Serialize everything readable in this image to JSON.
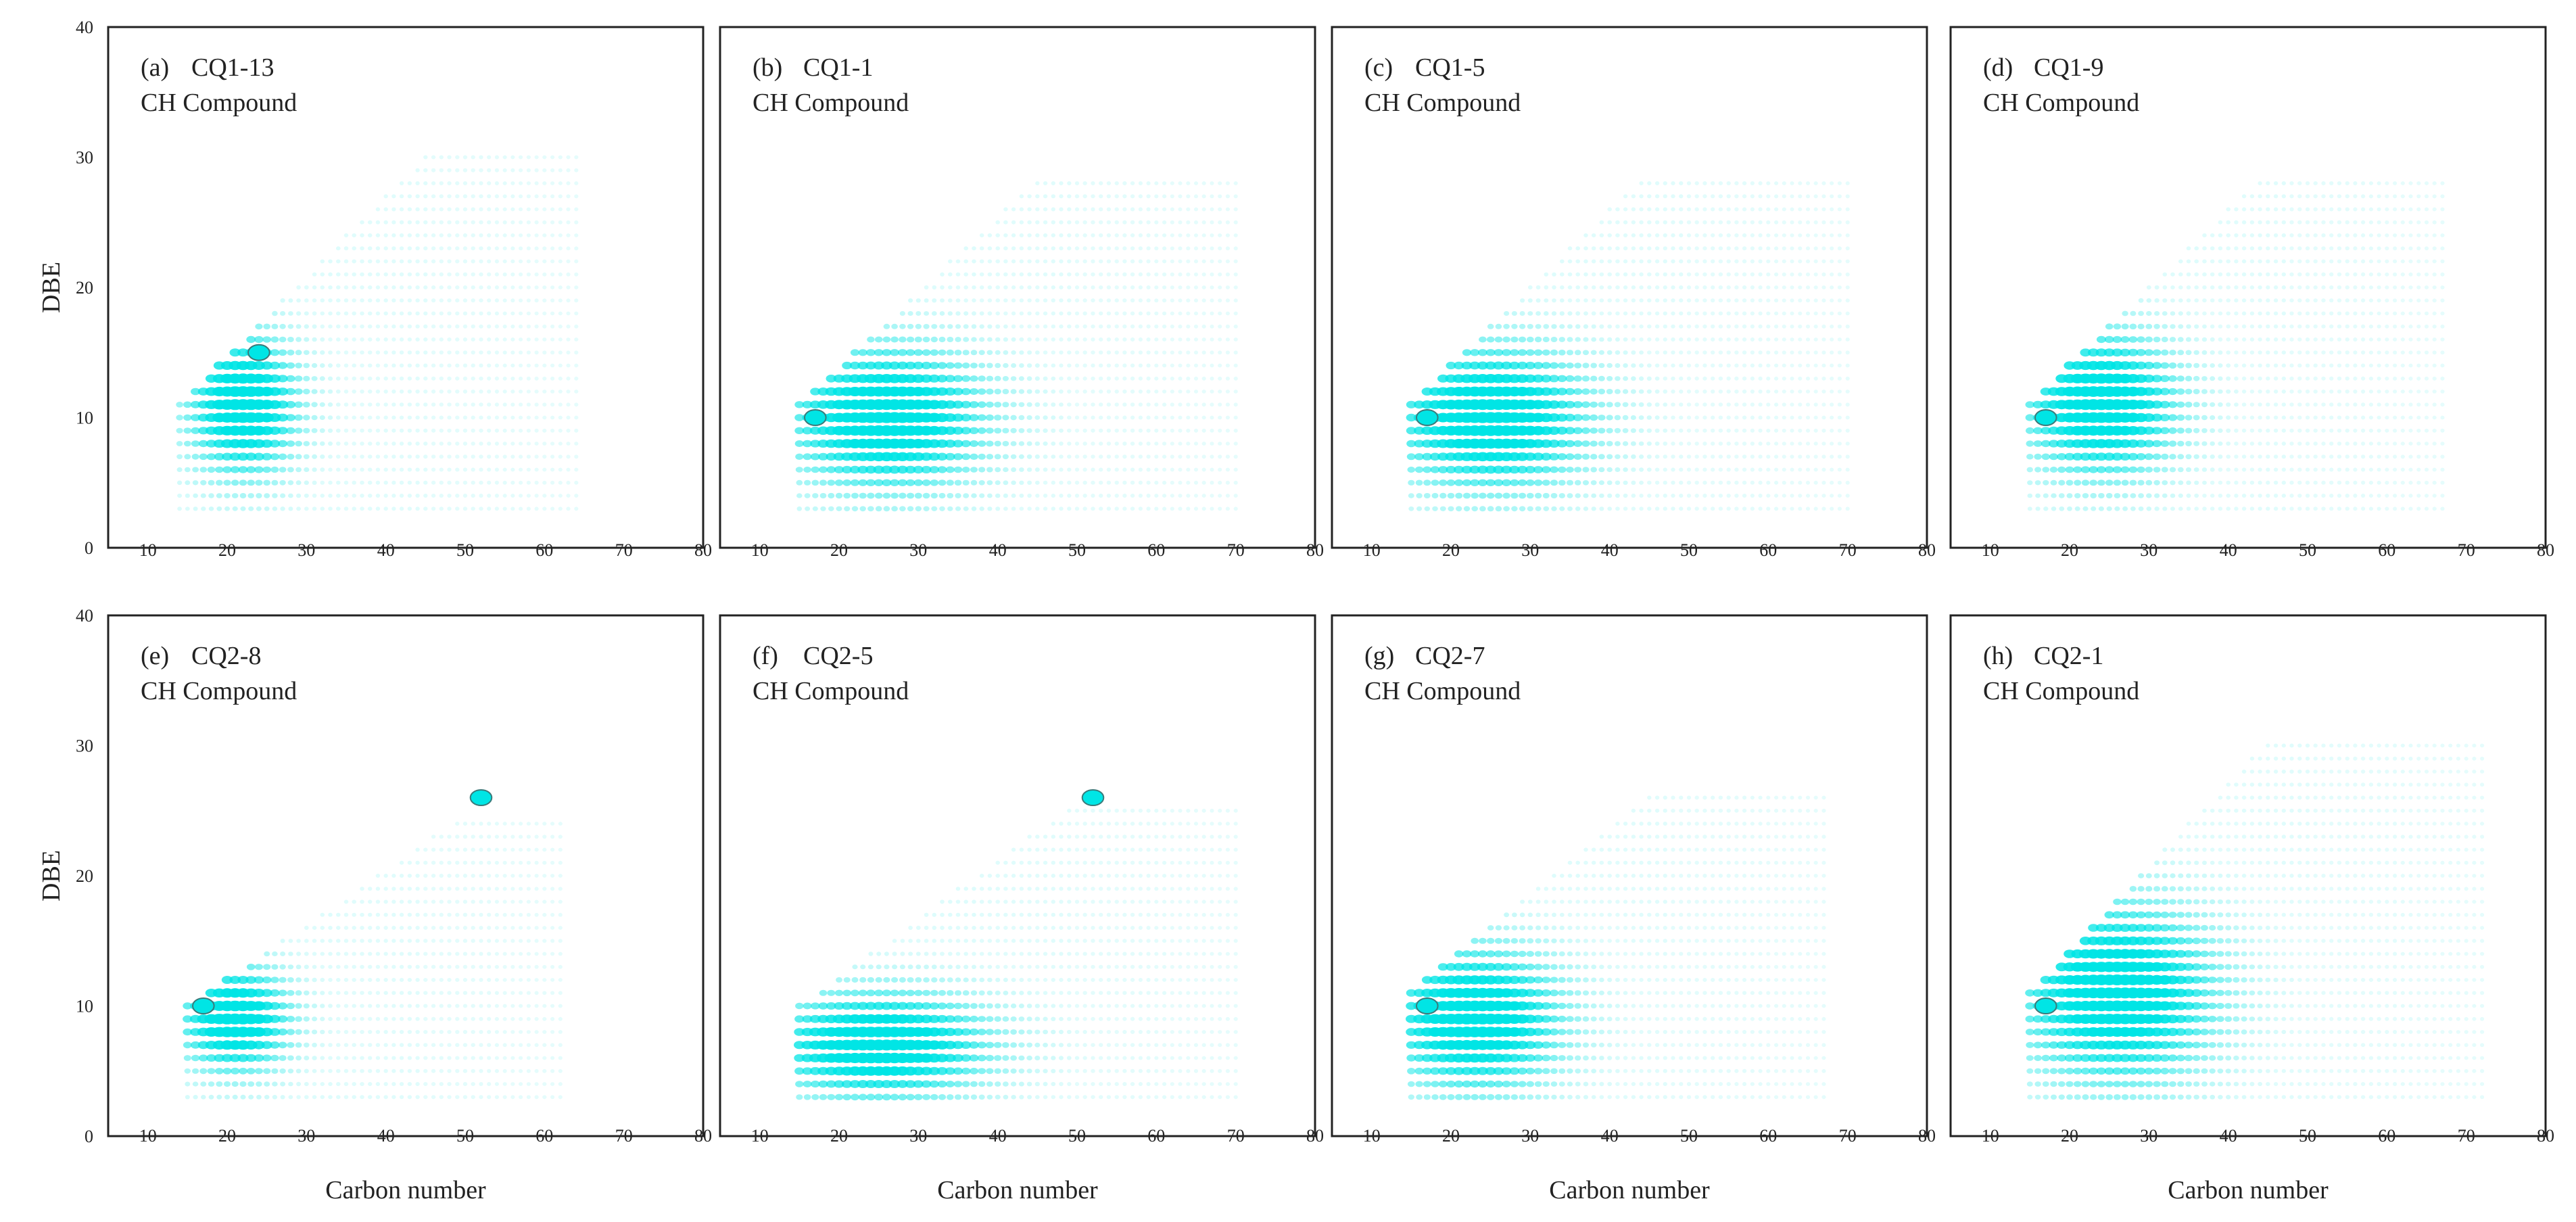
{
  "figure": {
    "type": "bubble-scatter (DBE vs Carbon number)",
    "marker_color": "#00E5E5",
    "marker_edge_color": "#3a7a7a"
  },
  "axes": {
    "xlabel": "Carbon number",
    "ylabel": "DBE",
    "xlim": [
      5,
      80
    ],
    "ylim": [
      0,
      40
    ],
    "x_ticks": [
      "10",
      "20",
      "30",
      "40",
      "50",
      "60",
      "70",
      "80"
    ],
    "y_ticks": [
      "0",
      "10",
      "20",
      "30",
      "40"
    ]
  },
  "chart_data": [
    {
      "type": "scatter",
      "id": "a",
      "tag": "(a)",
      "sample": "CQ1-13",
      "compound": "CH Compound",
      "xlim": [
        5,
        80
      ],
      "ylim": [
        0,
        40
      ],
      "envelope": {
        "cmin": 14,
        "cmax": 64,
        "dbe_min": 3,
        "dbe_max_at_cmin": 11,
        "slope": 0.62,
        "dbe_cap": 30
      },
      "hotspot": {
        "c": 22,
        "dbe": 11,
        "c_spread": 5,
        "dbe_spread": 4
      },
      "highlights": [
        {
          "c": 24,
          "dbe": 15
        }
      ]
    },
    {
      "type": "scatter",
      "id": "b",
      "tag": "(b)",
      "sample": "CQ1-1",
      "compound": "CH Compound",
      "xlim": [
        5,
        80
      ],
      "ylim": [
        0,
        40
      ],
      "envelope": {
        "cmin": 15,
        "cmax": 70,
        "dbe_min": 3,
        "dbe_max_at_cmin": 11,
        "slope": 0.58,
        "dbe_cap": 28
      },
      "hotspot": {
        "c": 26,
        "dbe": 10,
        "c_spread": 9,
        "dbe_spread": 4
      },
      "highlights": [
        {
          "c": 17,
          "dbe": 10
        }
      ]
    },
    {
      "type": "scatter",
      "id": "c",
      "tag": "(c)",
      "sample": "CQ1-5",
      "compound": "CH Compound",
      "xlim": [
        5,
        80
      ],
      "ylim": [
        0,
        40
      ],
      "envelope": {
        "cmin": 15,
        "cmax": 70,
        "dbe_min": 3,
        "dbe_max_at_cmin": 11,
        "slope": 0.6,
        "dbe_cap": 28
      },
      "hotspot": {
        "c": 25,
        "dbe": 10,
        "c_spread": 9,
        "dbe_spread": 4
      },
      "highlights": [
        {
          "c": 17,
          "dbe": 10
        }
      ]
    },
    {
      "type": "scatter",
      "id": "d",
      "tag": "(d)",
      "sample": "CQ1-9",
      "compound": "CH Compound",
      "xlim": [
        5,
        80
      ],
      "ylim": [
        0,
        40
      ],
      "envelope": {
        "cmin": 15,
        "cmax": 67,
        "dbe_min": 3,
        "dbe_max_at_cmin": 11,
        "slope": 0.6,
        "dbe_cap": 28
      },
      "hotspot": {
        "c": 24,
        "dbe": 11,
        "c_spread": 7,
        "dbe_spread": 4
      },
      "highlights": [
        {
          "c": 17,
          "dbe": 10
        }
      ]
    },
    {
      "type": "scatter",
      "id": "e",
      "tag": "(e)",
      "sample": "CQ2-8",
      "compound": "CH Compound",
      "xlim": [
        5,
        80
      ],
      "ylim": [
        0,
        40
      ],
      "envelope": {
        "cmin": 15,
        "cmax": 62,
        "dbe_min": 3,
        "dbe_max_at_cmin": 10,
        "slope": 0.42,
        "dbe_cap": 24
      },
      "hotspot": {
        "c": 21,
        "dbe": 9,
        "c_spread": 5,
        "dbe_spread": 3
      },
      "highlights": [
        {
          "c": 17,
          "dbe": 10
        },
        {
          "c": 52,
          "dbe": 26
        }
      ]
    },
    {
      "type": "scatter",
      "id": "f",
      "tag": "(f)",
      "sample": "CQ2-5",
      "compound": "CH Compound",
      "xlim": [
        5,
        80
      ],
      "ylim": [
        0,
        40
      ],
      "envelope": {
        "cmin": 15,
        "cmax": 70,
        "dbe_min": 3,
        "dbe_max_at_cmin": 10,
        "slope": 0.45,
        "dbe_cap": 25
      },
      "hotspot": {
        "c": 25,
        "dbe": 7,
        "c_spread": 10,
        "dbe_spread": 3
      },
      "highlights": [
        {
          "c": 52,
          "dbe": 26
        }
      ]
    },
    {
      "type": "scatter",
      "id": "g",
      "tag": "(g)",
      "sample": "CQ2-7",
      "compound": "CH Compound",
      "xlim": [
        5,
        80
      ],
      "ylim": [
        0,
        40
      ],
      "envelope": {
        "cmin": 15,
        "cmax": 67,
        "dbe_min": 3,
        "dbe_max_at_cmin": 11,
        "slope": 0.5,
        "dbe_cap": 26
      },
      "hotspot": {
        "c": 23,
        "dbe": 9,
        "c_spread": 8,
        "dbe_spread": 4
      },
      "highlights": [
        {
          "c": 17,
          "dbe": 10
        }
      ]
    },
    {
      "type": "scatter",
      "id": "h",
      "tag": "(h)",
      "sample": "CQ2-1",
      "compound": "CH Compound",
      "xlim": [
        5,
        80
      ],
      "ylim": [
        0,
        40
      ],
      "envelope": {
        "cmin": 15,
        "cmax": 72,
        "dbe_min": 3,
        "dbe_max_at_cmin": 11,
        "slope": 0.65,
        "dbe_cap": 30
      },
      "hotspot": {
        "c": 26,
        "dbe": 11,
        "c_spread": 9,
        "dbe_spread": 5
      },
      "highlights": [
        {
          "c": 17,
          "dbe": 10
        }
      ]
    }
  ]
}
